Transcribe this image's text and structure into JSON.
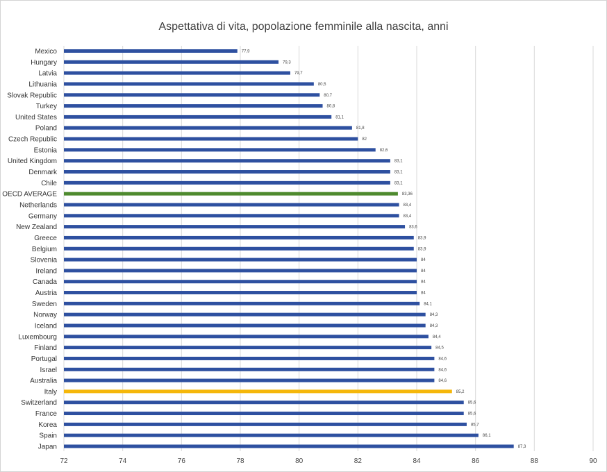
{
  "chart_data": {
    "type": "bar",
    "orientation": "horizontal",
    "title": "Aspettativa di vita, popolazione femminile alla nascita, anni",
    "xlabel": "",
    "ylabel": "",
    "xlim": [
      72,
      90
    ],
    "x_ticks": [
      "72",
      "74",
      "76",
      "78",
      "80",
      "82",
      "84",
      "86",
      "88",
      "90"
    ],
    "grid": "vertical",
    "legend": "none",
    "colors": {
      "default": "#2e50a0",
      "oecd": "#4e8a2e",
      "italy": "#f5b70a"
    },
    "categories": [
      "Mexico",
      "Hungary",
      "Latvia",
      "Lithuania",
      "Slovak Republic",
      "Turkey",
      "United States",
      "Poland",
      "Czech Republic",
      "Estonia",
      "United Kingdom",
      "Denmark",
      "Chile",
      "OECD AVERAGE",
      "Netherlands",
      "Germany",
      "New Zealand",
      "Greece",
      "Belgium",
      "Slovenia",
      "Ireland",
      "Canada",
      "Austria",
      "Sweden",
      "Norway",
      "Iceland",
      "Luxembourg",
      "Finland",
      "Portugal",
      "Israel",
      "Australia",
      "Italy",
      "Switzerland",
      "France",
      "Korea",
      "Spain",
      "Japan"
    ],
    "values": [
      77.9,
      79.3,
      79.7,
      80.5,
      80.7,
      80.8,
      81.1,
      81.8,
      82,
      82.6,
      83.1,
      83.1,
      83.1,
      83.36,
      83.4,
      83.4,
      83.6,
      83.9,
      83.9,
      84,
      84,
      84,
      84,
      84.1,
      84.3,
      84.3,
      84.4,
      84.5,
      84.6,
      84.6,
      84.6,
      85.2,
      85.6,
      85.6,
      85.7,
      86.1,
      87.3
    ],
    "value_labels": [
      "77,9",
      "79,3",
      "79,7",
      "80,5",
      "80,7",
      "80,8",
      "81,1",
      "81,8",
      "82",
      "82,6",
      "83,1",
      "83,1",
      "83,1",
      "83,36",
      "83,4",
      "83,4",
      "83,6",
      "83,9",
      "83,9",
      "84",
      "84",
      "84",
      "84",
      "84,1",
      "84,3",
      "84,3",
      "84,4",
      "84,5",
      "84,6",
      "84,6",
      "84,6",
      "85,2",
      "85,6",
      "85,6",
      "85,7",
      "86,1",
      "87,3"
    ],
    "highlight": {
      "OECD AVERAGE": "oecd",
      "Italy": "italy"
    }
  }
}
